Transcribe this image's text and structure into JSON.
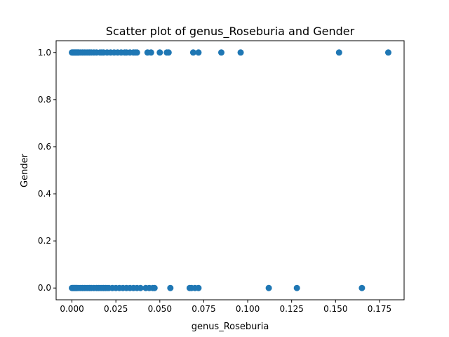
{
  "chart_data": {
    "type": "scatter",
    "title": "Scatter plot of genus_Roseburia and Gender",
    "xlabel": "genus_Roseburia",
    "ylabel": "Gender",
    "xlim": [
      -0.009,
      0.189
    ],
    "ylim": [
      -0.05,
      1.05
    ],
    "x_ticks": [
      0.0,
      0.025,
      0.05,
      0.075,
      0.1,
      0.125,
      0.15,
      0.175
    ],
    "x_tick_labels": [
      "0.000",
      "0.025",
      "0.050",
      "0.075",
      "0.100",
      "0.125",
      "0.150",
      "0.175"
    ],
    "y_ticks": [
      0.0,
      0.2,
      0.4,
      0.6,
      0.8,
      1.0
    ],
    "y_tick_labels": [
      "0.0",
      "0.2",
      "0.4",
      "0.6",
      "0.8",
      "1.0"
    ],
    "grid": false,
    "marker_color": "#1f77b4",
    "points": [
      {
        "x": 0.0,
        "y": 1
      },
      {
        "x": 0.0005,
        "y": 1
      },
      {
        "x": 0.001,
        "y": 1
      },
      {
        "x": 0.0015,
        "y": 1
      },
      {
        "x": 0.002,
        "y": 1
      },
      {
        "x": 0.0025,
        "y": 1
      },
      {
        "x": 0.003,
        "y": 1
      },
      {
        "x": 0.0035,
        "y": 1
      },
      {
        "x": 0.004,
        "y": 1
      },
      {
        "x": 0.005,
        "y": 1
      },
      {
        "x": 0.006,
        "y": 1
      },
      {
        "x": 0.007,
        "y": 1
      },
      {
        "x": 0.008,
        "y": 1
      },
      {
        "x": 0.009,
        "y": 1
      },
      {
        "x": 0.01,
        "y": 1
      },
      {
        "x": 0.011,
        "y": 1
      },
      {
        "x": 0.0125,
        "y": 1
      },
      {
        "x": 0.014,
        "y": 1
      },
      {
        "x": 0.016,
        "y": 1
      },
      {
        "x": 0.017,
        "y": 1
      },
      {
        "x": 0.018,
        "y": 1
      },
      {
        "x": 0.02,
        "y": 1
      },
      {
        "x": 0.022,
        "y": 1
      },
      {
        "x": 0.024,
        "y": 1
      },
      {
        "x": 0.026,
        "y": 1
      },
      {
        "x": 0.028,
        "y": 1
      },
      {
        "x": 0.03,
        "y": 1
      },
      {
        "x": 0.031,
        "y": 1
      },
      {
        "x": 0.033,
        "y": 1
      },
      {
        "x": 0.035,
        "y": 1
      },
      {
        "x": 0.036,
        "y": 1
      },
      {
        "x": 0.037,
        "y": 1
      },
      {
        "x": 0.043,
        "y": 1
      },
      {
        "x": 0.045,
        "y": 1
      },
      {
        "x": 0.05,
        "y": 1
      },
      {
        "x": 0.054,
        "y": 1
      },
      {
        "x": 0.055,
        "y": 1
      },
      {
        "x": 0.069,
        "y": 1
      },
      {
        "x": 0.072,
        "y": 1
      },
      {
        "x": 0.085,
        "y": 1
      },
      {
        "x": 0.096,
        "y": 1
      },
      {
        "x": 0.152,
        "y": 1
      },
      {
        "x": 0.18,
        "y": 1
      },
      {
        "x": 0.0,
        "y": 0
      },
      {
        "x": 0.0005,
        "y": 0
      },
      {
        "x": 0.001,
        "y": 0
      },
      {
        "x": 0.0015,
        "y": 0
      },
      {
        "x": 0.002,
        "y": 0
      },
      {
        "x": 0.0025,
        "y": 0
      },
      {
        "x": 0.003,
        "y": 0
      },
      {
        "x": 0.004,
        "y": 0
      },
      {
        "x": 0.005,
        "y": 0
      },
      {
        "x": 0.006,
        "y": 0
      },
      {
        "x": 0.007,
        "y": 0
      },
      {
        "x": 0.008,
        "y": 0
      },
      {
        "x": 0.009,
        "y": 0
      },
      {
        "x": 0.01,
        "y": 0
      },
      {
        "x": 0.011,
        "y": 0
      },
      {
        "x": 0.0125,
        "y": 0
      },
      {
        "x": 0.014,
        "y": 0
      },
      {
        "x": 0.015,
        "y": 0
      },
      {
        "x": 0.016,
        "y": 0
      },
      {
        "x": 0.017,
        "y": 0
      },
      {
        "x": 0.018,
        "y": 0
      },
      {
        "x": 0.019,
        "y": 0
      },
      {
        "x": 0.02,
        "y": 0
      },
      {
        "x": 0.021,
        "y": 0
      },
      {
        "x": 0.023,
        "y": 0
      },
      {
        "x": 0.025,
        "y": 0
      },
      {
        "x": 0.027,
        "y": 0
      },
      {
        "x": 0.029,
        "y": 0
      },
      {
        "x": 0.031,
        "y": 0
      },
      {
        "x": 0.033,
        "y": 0
      },
      {
        "x": 0.035,
        "y": 0
      },
      {
        "x": 0.037,
        "y": 0
      },
      {
        "x": 0.039,
        "y": 0
      },
      {
        "x": 0.042,
        "y": 0
      },
      {
        "x": 0.044,
        "y": 0
      },
      {
        "x": 0.046,
        "y": 0
      },
      {
        "x": 0.047,
        "y": 0
      },
      {
        "x": 0.056,
        "y": 0
      },
      {
        "x": 0.067,
        "y": 0
      },
      {
        "x": 0.068,
        "y": 0
      },
      {
        "x": 0.07,
        "y": 0
      },
      {
        "x": 0.072,
        "y": 0
      },
      {
        "x": 0.112,
        "y": 0
      },
      {
        "x": 0.128,
        "y": 0
      },
      {
        "x": 0.165,
        "y": 0
      }
    ]
  }
}
